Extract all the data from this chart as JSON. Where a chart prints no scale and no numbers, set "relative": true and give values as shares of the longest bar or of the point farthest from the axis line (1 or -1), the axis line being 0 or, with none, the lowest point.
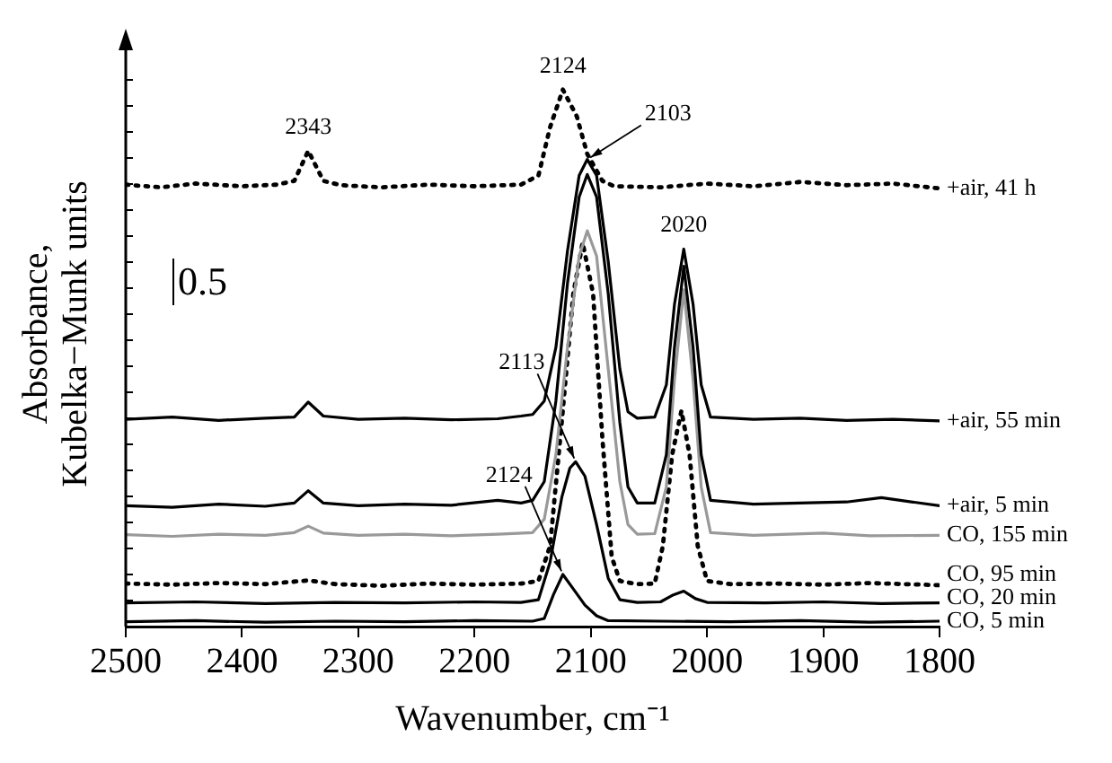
{
  "chart_data": {
    "type": "line",
    "relative": true,
    "xlabel": "Wavenumber, cm⁻¹",
    "ylabel": "Absorbance, Kubelka−Munk units",
    "xlim": [
      2500,
      1800
    ],
    "xticks": [
      2500,
      2400,
      2300,
      2200,
      2100,
      2000,
      1900,
      1800
    ],
    "grid": false,
    "legend": false,
    "marker": "none",
    "annotations": [
      "0.5",
      {
        "text": "2343",
        "x": 2343,
        "y": 0.886
      },
      {
        "text": "2124",
        "x": 2124,
        "y": 1.0
      },
      {
        "text": "2103",
        "x": 2103,
        "y": 0.87
      },
      {
        "text": "2020",
        "x": 2020,
        "y": 0.703
      },
      {
        "text": "2113",
        "x": 2113,
        "y": 0.307
      },
      {
        "text": "2124",
        "x": 2124,
        "y": 0.097
      }
    ],
    "series": [
      {
        "name": "+air, 41 h",
        "color": "#000000",
        "line_style": "dotted",
        "x": [
          2500,
          2470,
          2440,
          2400,
          2370,
          2355,
          2343,
          2330,
          2315,
          2280,
          2240,
          2200,
          2160,
          2145,
          2135,
          2124,
          2112,
          2103,
          2090,
          2080,
          2040,
          2000,
          1960,
          1920,
          1880,
          1840,
          1800
        ],
        "values": [
          0.823,
          0.818,
          0.825,
          0.82,
          0.823,
          0.83,
          0.886,
          0.83,
          0.822,
          0.818,
          0.823,
          0.82,
          0.823,
          0.84,
          0.93,
          1.0,
          0.95,
          0.88,
          0.83,
          0.82,
          0.818,
          0.825,
          0.82,
          0.828,
          0.822,
          0.825,
          0.816
        ]
      },
      {
        "name": "+air, 55 min",
        "color": "#000000",
        "line_style": "solid",
        "x": [
          2500,
          2460,
          2420,
          2380,
          2355,
          2343,
          2330,
          2300,
          2260,
          2220,
          2180,
          2160,
          2150,
          2140,
          2130,
          2120,
          2110,
          2103,
          2095,
          2085,
          2075,
          2068,
          2060,
          2045,
          2035,
          2028,
          2020,
          2012,
          2005,
          1997,
          1960,
          1920,
          1880,
          1840,
          1800
        ],
        "values": [
          0.386,
          0.39,
          0.384,
          0.388,
          0.39,
          0.418,
          0.392,
          0.386,
          0.388,
          0.385,
          0.387,
          0.392,
          0.395,
          0.42,
          0.52,
          0.7,
          0.84,
          0.87,
          0.84,
          0.68,
          0.48,
          0.4,
          0.388,
          0.39,
          0.45,
          0.6,
          0.703,
          0.6,
          0.45,
          0.39,
          0.386,
          0.388,
          0.384,
          0.386,
          0.383
        ]
      },
      {
        "name": "+air, 5 min",
        "color": "#000000",
        "line_style": "solid",
        "x": [
          2500,
          2460,
          2420,
          2380,
          2355,
          2343,
          2330,
          2300,
          2260,
          2220,
          2180,
          2160,
          2150,
          2140,
          2130,
          2120,
          2110,
          2103,
          2095,
          2085,
          2075,
          2068,
          2060,
          2045,
          2035,
          2028,
          2020,
          2012,
          2005,
          1997,
          1960,
          1920,
          1880,
          1850,
          1800
        ],
        "values": [
          0.225,
          0.222,
          0.228,
          0.224,
          0.23,
          0.253,
          0.23,
          0.225,
          0.228,
          0.226,
          0.235,
          0.23,
          0.235,
          0.27,
          0.42,
          0.64,
          0.8,
          0.842,
          0.8,
          0.62,
          0.38,
          0.26,
          0.23,
          0.23,
          0.32,
          0.52,
          0.671,
          0.52,
          0.32,
          0.235,
          0.228,
          0.23,
          0.232,
          0.24,
          0.225
        ]
      },
      {
        "name": "CO, 155 min",
        "color": "#999999",
        "line_style": "solid",
        "x": [
          2500,
          2460,
          2420,
          2380,
          2355,
          2343,
          2330,
          2300,
          2260,
          2220,
          2180,
          2150,
          2140,
          2130,
          2120,
          2110,
          2103,
          2095,
          2085,
          2075,
          2068,
          2060,
          2045,
          2035,
          2028,
          2020,
          2012,
          2005,
          1997,
          1960,
          1900,
          1860,
          1800
        ],
        "values": [
          0.171,
          0.168,
          0.172,
          0.17,
          0.175,
          0.187,
          0.174,
          0.17,
          0.172,
          0.169,
          0.172,
          0.175,
          0.2,
          0.32,
          0.52,
          0.69,
          0.737,
          0.69,
          0.48,
          0.27,
          0.19,
          0.172,
          0.173,
          0.26,
          0.46,
          0.627,
          0.46,
          0.26,
          0.175,
          0.17,
          0.174,
          0.169,
          0.17
        ]
      },
      {
        "name": "CO, 95 min",
        "color": "#000000",
        "line_style": "dotted",
        "x": [
          2500,
          2460,
          2420,
          2380,
          2343,
          2320,
          2280,
          2240,
          2200,
          2160,
          2145,
          2135,
          2125,
          2115,
          2107,
          2098,
          2090,
          2082,
          2075,
          2060,
          2045,
          2038,
          2030,
          2022,
          2015,
          2008,
          2000,
          1980,
          1940,
          1900,
          1860,
          1800
        ],
        "values": [
          0.08,
          0.078,
          0.081,
          0.079,
          0.086,
          0.079,
          0.076,
          0.08,
          0.078,
          0.08,
          0.085,
          0.15,
          0.38,
          0.62,
          0.715,
          0.62,
          0.35,
          0.13,
          0.085,
          0.079,
          0.08,
          0.15,
          0.32,
          0.402,
          0.32,
          0.15,
          0.085,
          0.079,
          0.08,
          0.078,
          0.081,
          0.077
        ]
      },
      {
        "name": "CO, 20 min",
        "color": "#000000",
        "line_style": "solid",
        "x": [
          2500,
          2440,
          2380,
          2320,
          2260,
          2200,
          2160,
          2145,
          2135,
          2125,
          2118,
          2113,
          2105,
          2095,
          2085,
          2075,
          2060,
          2040,
          2030,
          2020,
          2010,
          2000,
          1950,
          1900,
          1850,
          1800
        ],
        "values": [
          0.044,
          0.046,
          0.043,
          0.045,
          0.044,
          0.046,
          0.045,
          0.05,
          0.12,
          0.24,
          0.295,
          0.307,
          0.28,
          0.19,
          0.09,
          0.05,
          0.045,
          0.046,
          0.058,
          0.066,
          0.052,
          0.045,
          0.044,
          0.046,
          0.043,
          0.044
        ]
      },
      {
        "name": "CO, 5 min",
        "color": "#000000",
        "line_style": "solid",
        "x": [
          2500,
          2440,
          2380,
          2320,
          2260,
          2200,
          2150,
          2140,
          2132,
          2124,
          2115,
          2105,
          2095,
          2085,
          2040,
          1980,
          1920,
          1860,
          1800
        ],
        "values": [
          0.009,
          0.011,
          0.008,
          0.01,
          0.009,
          0.011,
          0.01,
          0.015,
          0.06,
          0.097,
          0.07,
          0.04,
          0.02,
          0.011,
          0.01,
          0.009,
          0.011,
          0.008,
          0.01
        ]
      }
    ]
  }
}
